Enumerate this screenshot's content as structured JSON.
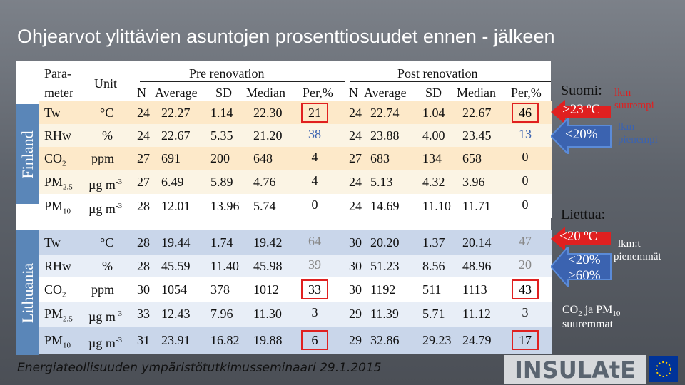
{
  "title": "Ohjearvot ylittävien asuntojen prosenttiosuudet ennen - jälkeen",
  "side_labels": {
    "finland": "Finland",
    "lithuania": "Lithuania"
  },
  "header": {
    "param_line1": "Para-",
    "param_line2": "meter",
    "unit": "Unit",
    "pre": "Pre renovation",
    "post": "Post renovation",
    "cols": [
      "N",
      "Average",
      "SD",
      "Median",
      "Per,%"
    ]
  },
  "finland_rows": [
    {
      "param": "Tw",
      "param_sub": "",
      "unit": "°C",
      "unit_sup": "",
      "pre": [
        "24",
        "22.27",
        "1.14",
        "22.30",
        "21"
      ],
      "post": [
        "24",
        "22.74",
        "1.04",
        "22.67",
        "46"
      ]
    },
    {
      "param": "RHw",
      "param_sub": "",
      "unit": "%",
      "unit_sup": "",
      "pre": [
        "24",
        "22.67",
        "5.35",
        "21.20",
        "38"
      ],
      "post": [
        "24",
        "23.88",
        "4.00",
        "23.45",
        "13"
      ]
    },
    {
      "param": "CO",
      "param_sub": "2",
      "unit": "ppm",
      "unit_sup": "",
      "pre": [
        "27",
        "691",
        "200",
        "648",
        "4"
      ],
      "post": [
        "27",
        "683",
        "134",
        "658",
        "0"
      ]
    },
    {
      "param": "PM",
      "param_sub": "2.5",
      "unit": "µg m",
      "unit_sup": "-3",
      "pre": [
        "27",
        "6.49",
        "5.89",
        "4.76",
        "4"
      ],
      "post": [
        "24",
        "5.13",
        "4.32",
        "3.96",
        "0"
      ]
    },
    {
      "param": "PM",
      "param_sub": "10",
      "unit": "µg m",
      "unit_sup": "-3",
      "pre": [
        "28",
        "12.01",
        "13.96",
        "5.74",
        "0"
      ],
      "post": [
        "24",
        "14.69",
        "11.10",
        "11.71",
        "0"
      ]
    }
  ],
  "lithuania_rows": [
    {
      "param": "Tw",
      "param_sub": "",
      "unit": "°C",
      "unit_sup": "",
      "pre": [
        "28",
        "19.44",
        "1.74",
        "19.42",
        "64"
      ],
      "post": [
        "30",
        "20.20",
        "1.37",
        "20.14",
        "47"
      ]
    },
    {
      "param": "RHw",
      "param_sub": "",
      "unit": "%",
      "unit_sup": "",
      "pre": [
        "28",
        "45.59",
        "11.40",
        "45.98",
        "39"
      ],
      "post": [
        "30",
        "51.23",
        "8.56",
        "48.96",
        "20"
      ]
    },
    {
      "param": "CO",
      "param_sub": "2",
      "unit": "ppm",
      "unit_sup": "",
      "pre": [
        "30",
        "1054",
        "378",
        "1012",
        "33"
      ],
      "post": [
        "30",
        "1192",
        "511",
        "1113",
        "43"
      ]
    },
    {
      "param": "PM",
      "param_sub": "2.5",
      "unit": "µg m",
      "unit_sup": "-3",
      "pre": [
        "33",
        "12.43",
        "7.96",
        "11.30",
        "3"
      ],
      "post": [
        "29",
        "11.39",
        "5.71",
        "11.12",
        "3"
      ]
    },
    {
      "param": "PM",
      "param_sub": "10",
      "unit": "µg m",
      "unit_sup": "-3",
      "pre": [
        "31",
        "23.91",
        "16.82",
        "19.88",
        "6"
      ],
      "post": [
        "29",
        "32.86",
        "29.23",
        "24.79",
        "17"
      ]
    }
  ],
  "right": {
    "suomi_title": "Suomi:",
    "suomi_red_label": ">23 ºC",
    "suomi_blue_label": "<20%",
    "suomi_red_note_l1": "lkm",
    "suomi_red_note_l2": "suurempi",
    "suomi_blue_note_l1": "lkm",
    "suomi_blue_note_l2": "pienempi",
    "liettua_title": "Liettua:",
    "liettua_red_label": "<20 ºC",
    "liettua_blue_label1": "<20%",
    "liettua_blue_label2": ">60%",
    "liettua_note_l1": "lkm:t",
    "liettua_note_l2": "pienemmät",
    "co2_note_l1": "CO",
    "co2_note_sub": "2",
    "co2_note_mid": " ja PM",
    "co2_note_sub2": "10",
    "co2_note_l2": "suuremmat"
  },
  "footer": "Energiateollisuuden ympäristötutkimusseminaari 29.1.2015",
  "logo_text": "INSULAtE",
  "colors": {
    "red": "#e02020",
    "blue": "#3b63b0",
    "fin_row": "#fde9c9",
    "lit_row": "#c9d6ea"
  }
}
